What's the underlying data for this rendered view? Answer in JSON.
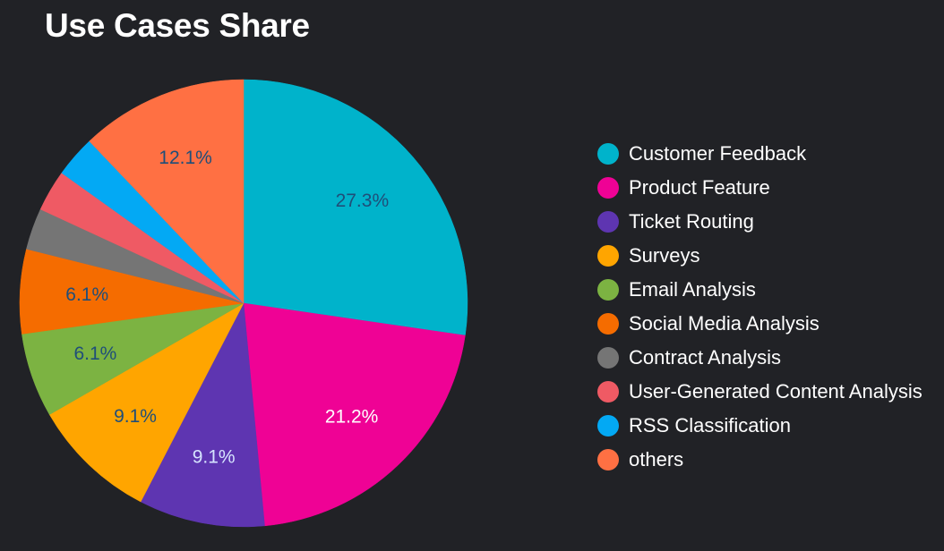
{
  "chart_data": {
    "type": "pie",
    "title": "Use Cases Share",
    "start": "top",
    "direction": "clockwise",
    "legend_position": "right",
    "slices": [
      {
        "label": "Customer Feedback",
        "value": 27.3,
        "display": "27.3%",
        "color": "#00b3cb",
        "label_color": "#1f4e79"
      },
      {
        "label": "Product Feature",
        "value": 21.2,
        "display": "21.2%",
        "color": "#ef0295",
        "label_color": "#ffffff"
      },
      {
        "label": "Ticket Routing",
        "value": 9.1,
        "display": "9.1%",
        "color": "#5e35b1",
        "label_color": "#d6e4ff"
      },
      {
        "label": "Surveys",
        "value": 9.1,
        "display": "9.1%",
        "color": "#ffa500",
        "label_color": "#1f4e79"
      },
      {
        "label": "Email Analysis",
        "value": 6.1,
        "display": "6.1%",
        "color": "#7cb342",
        "label_color": "#1f4e79"
      },
      {
        "label": "Social Media Analysis",
        "value": 6.1,
        "display": "6.1%",
        "color": "#f56c00",
        "label_color": "#1f4e79"
      },
      {
        "label": "Contract Analysis",
        "value": 3.0,
        "display": "",
        "color": "#757575",
        "label_color": "#1f4e79"
      },
      {
        "label": "User-Generated Content Analysis",
        "value": 3.0,
        "display": "",
        "color": "#ef5a64",
        "label_color": "#1f4e79"
      },
      {
        "label": "RSS Classification",
        "value": 3.0,
        "display": "",
        "color": "#03a9f4",
        "label_color": "#1f4e79"
      },
      {
        "label": "others",
        "value": 12.1,
        "display": "12.1%",
        "color": "#ff7043",
        "label_color": "#1f4e79"
      }
    ]
  }
}
